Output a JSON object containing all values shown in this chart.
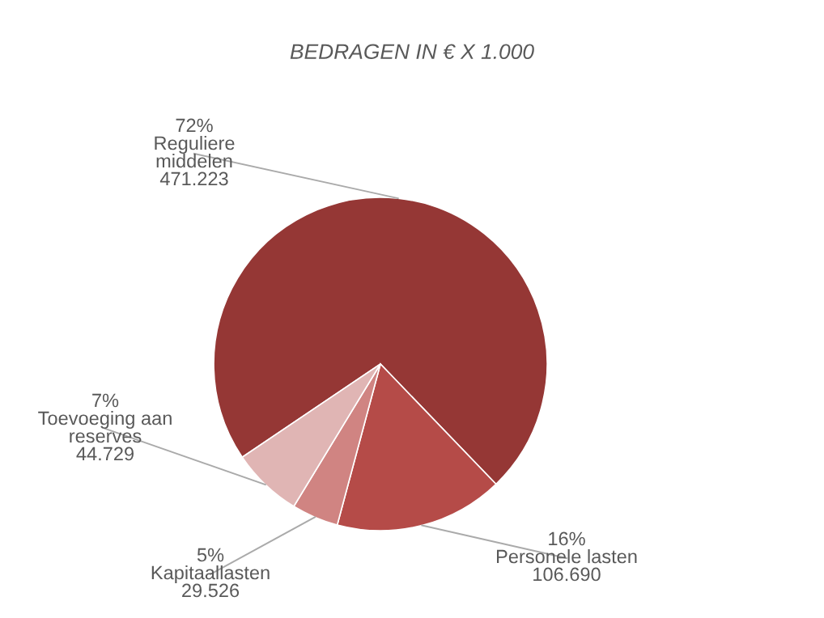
{
  "chart_data": {
    "type": "pie",
    "title": "BEDRAGEN IN € X 1.000",
    "categories": [
      "Reguliere\nmiddelen",
      "Personele lasten",
      "Kapitaallasten",
      "Toevoeging aan\nreserves"
    ],
    "values": [
      471223,
      106690,
      29526,
      44729
    ],
    "value_labels": [
      "471.223",
      "106.690",
      "29.526",
      "44.729"
    ],
    "annotations": [
      "72%",
      "16%",
      "5%",
      "7%"
    ],
    "colors": [
      "#953735",
      "#b54b48",
      "#d08482",
      "#e0b5b4"
    ]
  }
}
